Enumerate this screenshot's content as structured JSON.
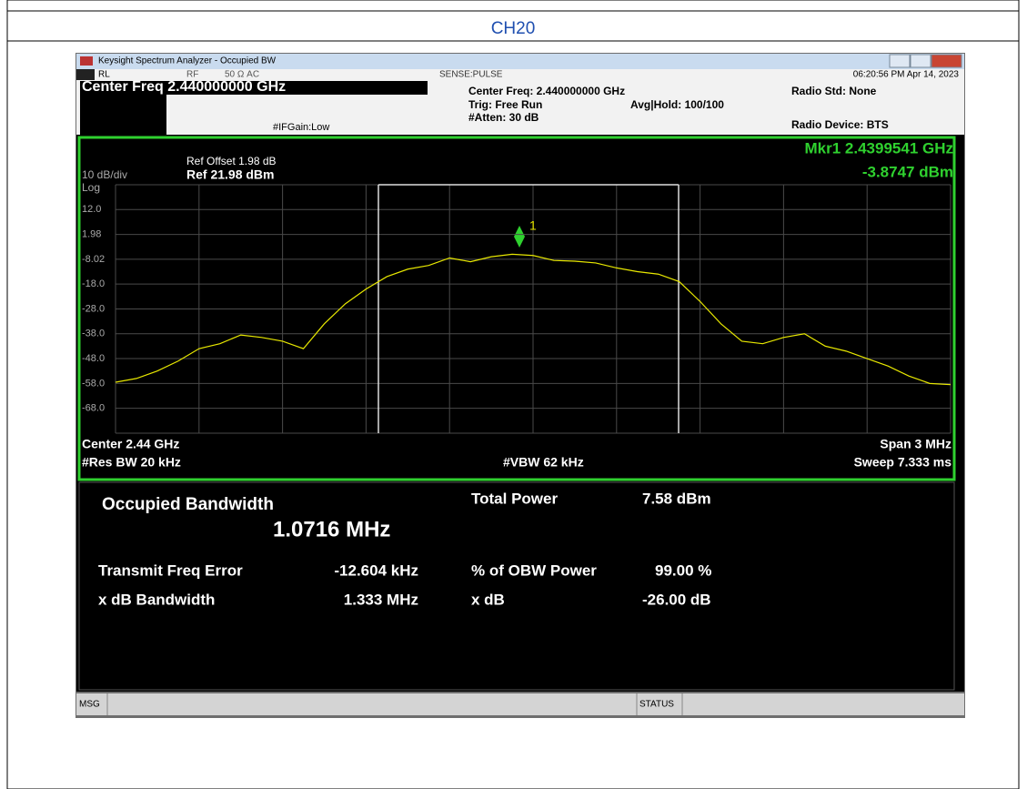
{
  "header": {
    "title": "CH20"
  },
  "window": {
    "title": "Keysight Spectrum Analyzer - Occupied BW"
  },
  "status_line": {
    "rl": "RL",
    "rf": "RF",
    "impedance": "50 Ω   AC",
    "sense": "SENSE:PULSE",
    "timestamp": "06:20:56 PM Apr 14, 2023"
  },
  "settings": {
    "center_freq": "Center Freq 2.440000000 GHz",
    "if_gain": "#IFGain:Low",
    "center_freq_info": "Center Freq: 2.440000000 GHz",
    "trig": "Trig: Free Run",
    "atten": "#Atten: 30 dB",
    "avg_hold": "Avg|Hold: 100/100",
    "radio_std": "Radio Std: None",
    "radio_device": "Radio Device: BTS"
  },
  "display": {
    "ref_offset": "Ref Offset 1.98 dB",
    "ref": "Ref 21.98 dBm",
    "scale": "10 dB/div",
    "scale_type": "Log",
    "marker_freq": "Mkr1  2.4399541 GHz",
    "marker_level": "-3.8747 dBm",
    "marker_label": "1",
    "center": "Center  2.44 GHz",
    "res_bw": "#Res BW  20 kHz",
    "vbw": "#VBW  62 kHz",
    "span": "Span 3 MHz",
    "sweep": "Sweep  7.333 ms",
    "trace": {
      "type": "line",
      "color": "#e8e800",
      "ylim": [
        -78.02,
        21.98
      ],
      "yticks": [
        {
          "value": 12,
          "label": "12.0"
        },
        1.98,
        -8.02,
        {
          "value": -18,
          "label": "-18.0"
        },
        {
          "value": -28,
          "label": "-28.0"
        },
        {
          "value": -38,
          "label": "-38.0"
        },
        {
          "value": -48,
          "label": "-48.0"
        },
        {
          "value": -58,
          "label": "-58.0"
        },
        {
          "value": -68,
          "label": "-68.0"
        }
      ],
      "values": [
        -57.5,
        -56,
        -53,
        -49,
        -44,
        -42,
        -38.5,
        -39.5,
        -41,
        -44,
        -34,
        -26,
        -20,
        -15,
        -12,
        -10.5,
        -7.5,
        -9,
        -7,
        -6,
        -6.5,
        -8.5,
        -8.8,
        -9.5,
        -11.5,
        -13,
        -14,
        -17,
        -25,
        -34,
        -41,
        -42,
        -39.5,
        -38,
        -43,
        -45,
        -48,
        -51,
        -55,
        -58,
        -58.5
      ]
    }
  },
  "results": {
    "obw_label": "Occupied Bandwidth",
    "obw_value": "1.0716 MHz",
    "tfe_label": "Transmit Freq Error",
    "tfe_value": "-12.604 kHz",
    "xdb_bw_label": "x dB Bandwidth",
    "xdb_bw_value": "1.333 MHz",
    "total_power_label": "Total Power",
    "total_power_value": "7.58 dBm",
    "obw_power_label": "% of OBW Power",
    "obw_power_value": "99.00 %",
    "xdb_label": "x dB",
    "xdb_value": "-26.00 dB"
  },
  "status_bar": {
    "msg": "MSG",
    "status": "STATUS"
  }
}
